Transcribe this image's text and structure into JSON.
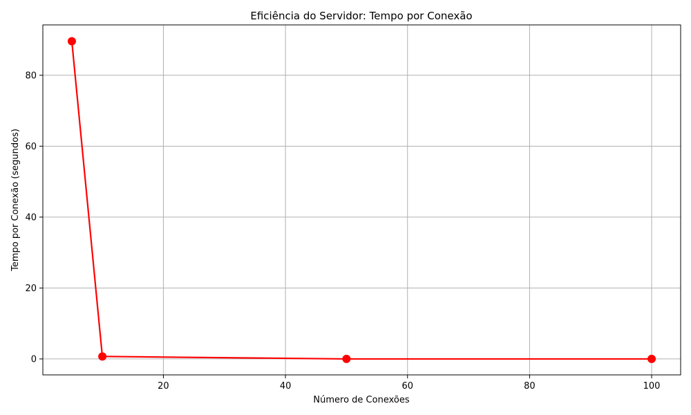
{
  "chart_data": {
    "type": "line",
    "title": "Eficiência do Servidor: Tempo por Conexão",
    "xlabel": "Número de Conexões",
    "ylabel": "Tempo por Conexão (segundos)",
    "xlim": [
      0.25,
      104.75
    ],
    "ylim": [
      -4.5,
      94.2
    ],
    "xticks": [
      20,
      40,
      60,
      80,
      100
    ],
    "yticks": [
      0,
      20,
      40,
      60,
      80
    ],
    "grid": true,
    "series": [
      {
        "x": [
          5,
          10,
          50,
          100
        ],
        "y": [
          89.6,
          0.7,
          0.0,
          0.0
        ],
        "color": "#ff0000",
        "marker": "circle"
      }
    ]
  }
}
